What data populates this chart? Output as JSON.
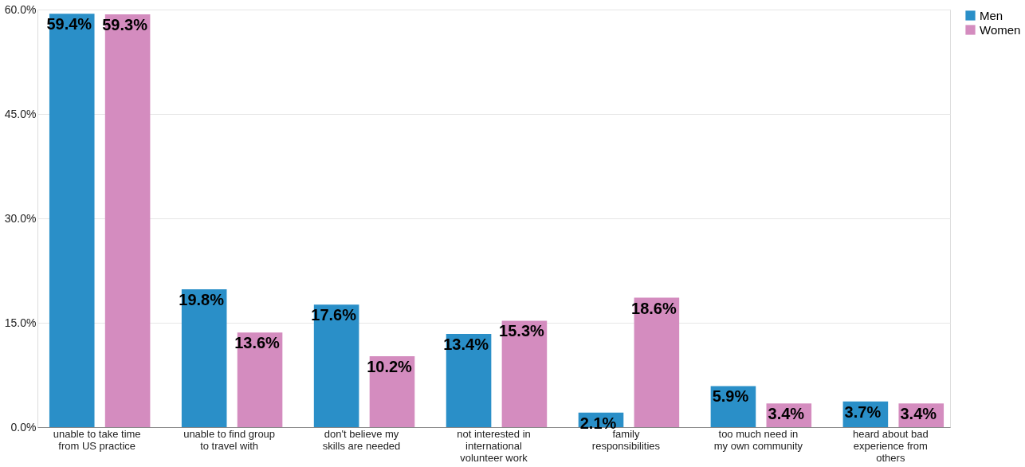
{
  "chart_data": {
    "type": "bar",
    "categories": [
      "unable to take time\nfrom US practice",
      "unable to find group\nto travel with",
      "don't believe my\nskills are needed",
      "not interested in\ninternational\nvolunteer work",
      "family\nresponsibilities",
      "too much need in\nmy own community",
      "heard about bad\nexperience from\nothers"
    ],
    "series": [
      {
        "name": "Men",
        "color": "#2a8fc8",
        "values": [
          59.4,
          19.8,
          17.6,
          13.4,
          2.1,
          5.9,
          3.7
        ],
        "value_labels": [
          "59.4%",
          "19.8%",
          "17.6%",
          "13.4%",
          "2.1%",
          "5.9%",
          "3.7%"
        ]
      },
      {
        "name": "Women",
        "color": "#d48cbf",
        "values": [
          59.3,
          13.6,
          10.2,
          15.3,
          18.6,
          3.4,
          3.4
        ],
        "value_labels": [
          "59.3%",
          "13.6%",
          "10.2%",
          "15.3%",
          "18.6%",
          "3.4%",
          "3.4%"
        ]
      }
    ],
    "ylim": [
      0,
      60
    ],
    "yticks": [
      {
        "value": 0,
        "label": "0.0%"
      },
      {
        "value": 15,
        "label": "15.0%"
      },
      {
        "value": 30,
        "label": "30.0%"
      },
      {
        "value": 45,
        "label": "45.0%"
      },
      {
        "value": 60,
        "label": "60.0%"
      }
    ],
    "grid": "y",
    "legend": "right"
  }
}
